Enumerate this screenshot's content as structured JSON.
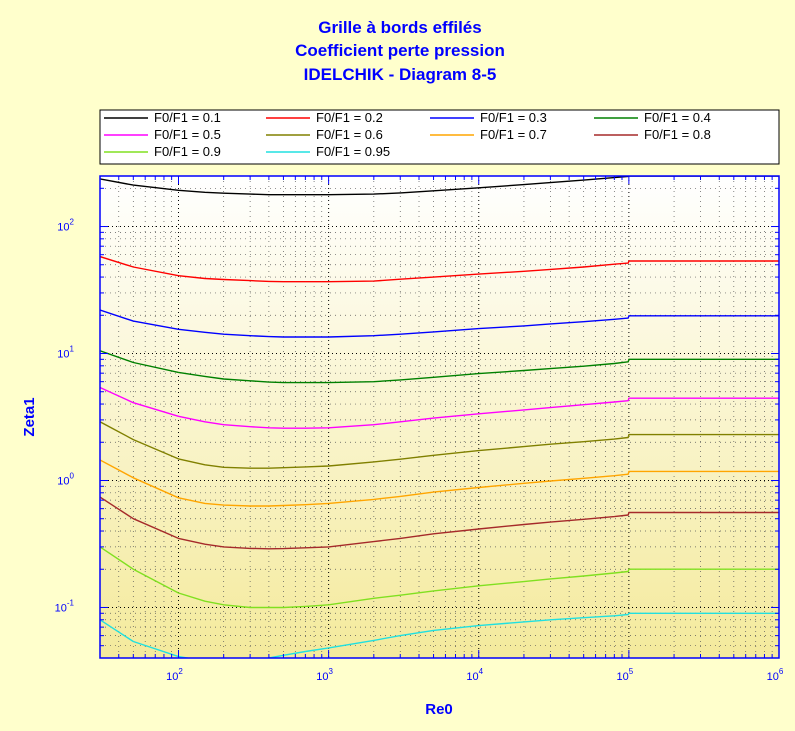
{
  "chart_data": {
    "type": "line",
    "title_lines": [
      "Grille à bords effilés",
      "Coefficient perte pression",
      "IDELCHIK - Diagram 8-5"
    ],
    "xlabel": "Re0",
    "ylabel": "Zeta1",
    "xscale": "log",
    "yscale": "log",
    "xlim": [
      30,
      1000000
    ],
    "ylim": [
      0.04,
      250
    ],
    "x_ticks": [
      {
        "base": "10",
        "exp": "2",
        "value": 100
      },
      {
        "base": "10",
        "exp": "3",
        "value": 1000
      },
      {
        "base": "10",
        "exp": "4",
        "value": 10000
      },
      {
        "base": "10",
        "exp": "5",
        "value": 100000
      },
      {
        "base": "10",
        "exp": "6",
        "value": 1000000
      }
    ],
    "y_ticks": [
      {
        "base": "10",
        "exp": "-1",
        "value": 0.1
      },
      {
        "base": "10",
        "exp": "0",
        "value": 1
      },
      {
        "base": "10",
        "exp": "1",
        "value": 10
      },
      {
        "base": "10",
        "exp": "2",
        "value": 100
      }
    ],
    "grid": true,
    "legend_position": "top",
    "x": [
      30,
      50,
      100,
      150,
      200,
      300,
      400,
      500,
      700,
      1000,
      2000,
      3000,
      5000,
      10000,
      20000,
      30000,
      50000,
      80000,
      99000,
      100000,
      110000,
      200000,
      500000,
      1000000
    ],
    "series": [
      {
        "name": "F0/F1 = 0.1",
        "color": "#000000",
        "values": [
          237,
          212,
          193,
          186,
          183,
          180,
          178,
          178,
          178,
          178,
          180,
          184,
          191,
          202,
          214,
          222,
          232,
          243,
          248,
          250,
          250,
          250,
          250,
          250
        ]
      },
      {
        "name": "F0/F1 = 0.2",
        "color": "#ff0000",
        "values": [
          58,
          48,
          41,
          39,
          38.3,
          37.5,
          37,
          36.8,
          36.8,
          36.8,
          37.2,
          38.5,
          40,
          42.2,
          44.4,
          46,
          48,
          50.5,
          51.5,
          53.5,
          53.5,
          53.5,
          53.5,
          53.5
        ]
      },
      {
        "name": "F0/F1 = 0.3",
        "color": "#0000ff",
        "values": [
          22,
          18,
          15.5,
          14.7,
          14.2,
          13.8,
          13.6,
          13.5,
          13.5,
          13.5,
          13.8,
          14.2,
          14.8,
          15.7,
          16.5,
          17.1,
          17.8,
          18.6,
          19,
          19.8,
          19.8,
          19.8,
          19.8,
          19.8
        ]
      },
      {
        "name": "F0/F1 = 0.4",
        "color": "#008000",
        "values": [
          10.5,
          8.5,
          7.1,
          6.6,
          6.3,
          6.1,
          5.95,
          5.9,
          5.9,
          5.9,
          6.0,
          6.2,
          6.5,
          6.95,
          7.35,
          7.6,
          7.95,
          8.35,
          8.6,
          9.0,
          9.0,
          9.0,
          9.0,
          9.0
        ]
      },
      {
        "name": "F0/F1 = 0.5",
        "color": "#ff00ff",
        "values": [
          5.4,
          4.1,
          3.2,
          2.9,
          2.75,
          2.65,
          2.6,
          2.58,
          2.58,
          2.6,
          2.75,
          2.9,
          3.1,
          3.35,
          3.6,
          3.75,
          3.95,
          4.15,
          4.25,
          4.45,
          4.45,
          4.45,
          4.45,
          4.45
        ]
      },
      {
        "name": "F0/F1 = 0.6",
        "color": "#808000",
        "values": [
          2.9,
          2.1,
          1.48,
          1.33,
          1.27,
          1.25,
          1.25,
          1.26,
          1.28,
          1.3,
          1.4,
          1.47,
          1.58,
          1.72,
          1.85,
          1.93,
          2.02,
          2.12,
          2.18,
          2.3,
          2.3,
          2.3,
          2.3,
          2.3
        ]
      },
      {
        "name": "F0/F1 = 0.7",
        "color": "#ffa500",
        "values": [
          1.45,
          1.05,
          0.73,
          0.66,
          0.64,
          0.63,
          0.63,
          0.635,
          0.645,
          0.66,
          0.71,
          0.75,
          0.81,
          0.88,
          0.95,
          0.99,
          1.04,
          1.09,
          1.12,
          1.18,
          1.18,
          1.18,
          1.18,
          1.18
        ]
      },
      {
        "name": "F0/F1 = 0.8",
        "color": "#a52a2a",
        "values": [
          0.74,
          0.5,
          0.35,
          0.315,
          0.3,
          0.292,
          0.29,
          0.291,
          0.295,
          0.3,
          0.33,
          0.35,
          0.38,
          0.415,
          0.45,
          0.47,
          0.495,
          0.52,
          0.535,
          0.56,
          0.56,
          0.56,
          0.56,
          0.56
        ]
      },
      {
        "name": "F0/F1 = 0.9",
        "color": "#80e020",
        "values": [
          0.3,
          0.2,
          0.13,
          0.112,
          0.105,
          0.1,
          0.1,
          0.1,
          0.102,
          0.105,
          0.118,
          0.125,
          0.135,
          0.148,
          0.16,
          0.168,
          0.177,
          0.187,
          0.192,
          0.2,
          0.2,
          0.2,
          0.2,
          0.2
        ]
      },
      {
        "name": "F0/F1 = 0.95",
        "color": "#20e0e0",
        "values": [
          0.08,
          0.054,
          0.041,
          0.038,
          0.037,
          0.038,
          0.04,
          0.042,
          0.045,
          0.048,
          0.055,
          0.06,
          0.066,
          0.072,
          0.077,
          0.08,
          0.083,
          0.086,
          0.088,
          0.09,
          0.09,
          0.09,
          0.09,
          0.09
        ]
      }
    ]
  }
}
